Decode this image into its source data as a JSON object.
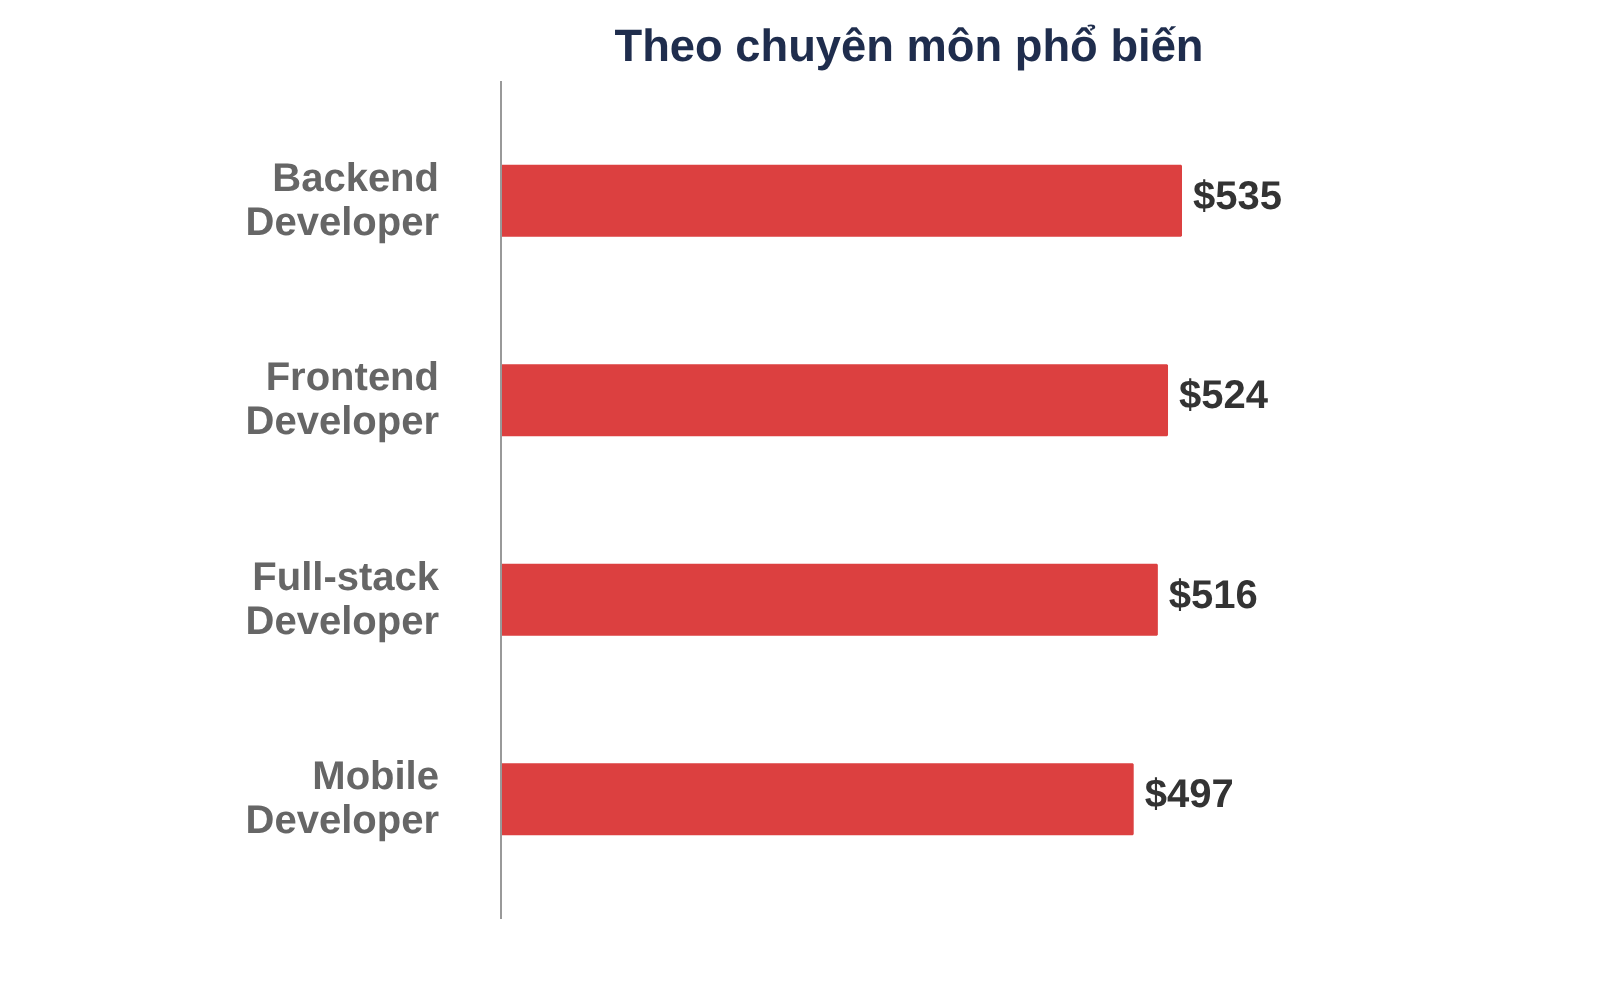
{
  "chart_data": {
    "type": "bar",
    "orientation": "horizontal",
    "title": "Theo chuyên môn phổ biến",
    "categories": [
      "Backend\nDeveloper",
      "Frontend\nDeveloper",
      "Full-stack\nDeveloper",
      "Mobile\nDeveloper"
    ],
    "values": [
      535,
      524,
      516,
      497
    ],
    "color": "#dc4040",
    "value_labels": [
      "$535",
      "$524",
      "$516",
      "$497"
    ],
    "grid": false
  }
}
